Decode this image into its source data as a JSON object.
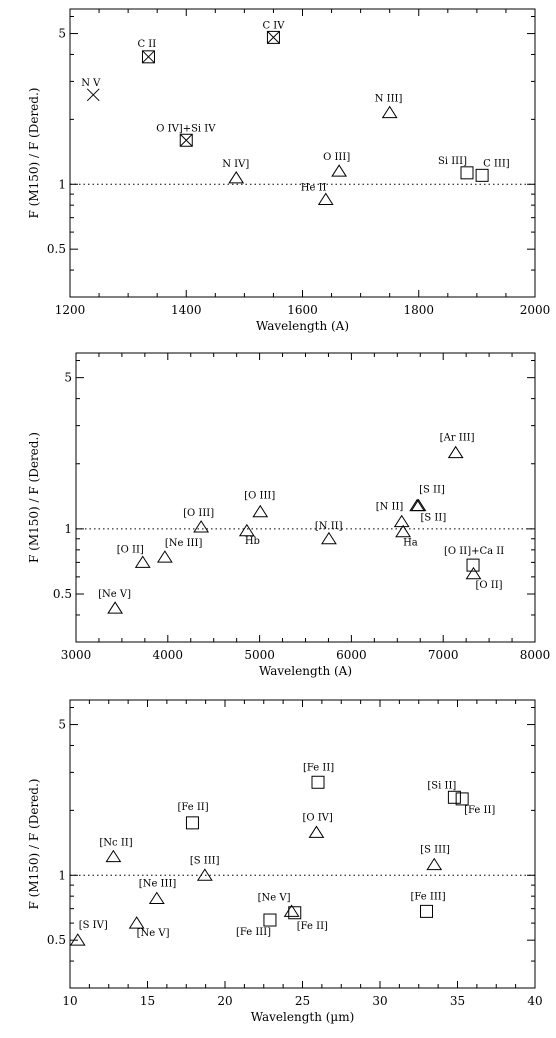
{
  "chart_data": [
    {
      "type": "scatter",
      "title": "",
      "xlabel": "Wavelength (A)",
      "ylabel": "F (M150) / F (Dered.)",
      "xlim": [
        1200,
        2000
      ],
      "ylim": [
        0.3,
        6.5
      ],
      "yscale": "log",
      "xticks": [
        1200,
        1400,
        1600,
        1800,
        2000
      ],
      "yticks": [
        0.5,
        1.0,
        5.0
      ],
      "reference_line": 1.0,
      "points": [
        {
          "label": "N V",
          "x": 1240,
          "y": 2.6,
          "marker": "x",
          "lx": -12,
          "ly": -9
        },
        {
          "label": "C II",
          "x": 1335,
          "y": 3.9,
          "marker": "boxx",
          "lx": -11,
          "ly": -10
        },
        {
          "label": "O IV]+Si IV",
          "x": 1400,
          "y": 1.6,
          "marker": "boxx",
          "lx": -30,
          "ly": -9
        },
        {
          "label": "C IV",
          "x": 1550,
          "y": 4.8,
          "marker": "boxx",
          "lx": -11,
          "ly": -9
        },
        {
          "label": "N IV]",
          "x": 1486,
          "y": 1.07,
          "marker": "tri",
          "lx": -14,
          "ly": -11
        },
        {
          "label": "He II",
          "x": 1640,
          "y": 0.85,
          "marker": "tri",
          "lx": -25,
          "ly": -9
        },
        {
          "label": "O III]",
          "x": 1663,
          "y": 1.15,
          "marker": "tri",
          "lx": -16,
          "ly": -11
        },
        {
          "label": "N III]",
          "x": 1750,
          "y": 2.15,
          "marker": "tri",
          "lx": -15,
          "ly": -11
        },
        {
          "label": "Si III]",
          "x": 1883,
          "y": 1.13,
          "marker": "box",
          "lx": -29,
          "ly": -9
        },
        {
          "label": "C III]",
          "x": 1909,
          "y": 1.1,
          "marker": "box",
          "lx": 1,
          "ly": -9
        }
      ]
    },
    {
      "type": "scatter",
      "title": "",
      "xlabel": "Wavelength (A)",
      "ylabel": "F (M150) / F (Dered.)",
      "xlim": [
        3000,
        8000
      ],
      "ylim": [
        0.3,
        6.5
      ],
      "yscale": "log",
      "xticks": [
        3000,
        4000,
        5000,
        6000,
        7000,
        8000
      ],
      "yticks": [
        0.5,
        1.0,
        5.0
      ],
      "reference_line": 1.0,
      "points": [
        {
          "label": "[Ne V]",
          "x": 3426,
          "y": 0.43,
          "marker": "tri",
          "lx": -17,
          "ly": -11
        },
        {
          "label": "[O II]",
          "x": 3727,
          "y": 0.7,
          "marker": "tri",
          "lx": -26,
          "ly": -10
        },
        {
          "label": "[Ne III]",
          "x": 3968,
          "y": 0.74,
          "marker": "tri",
          "lx": 0,
          "ly": -11
        },
        {
          "label": "[O III]",
          "x": 4363,
          "y": 1.02,
          "marker": "tri",
          "lx": -18,
          "ly": -11
        },
        {
          "label": "Hb",
          "x": 4861,
          "y": 0.98,
          "marker": "tri",
          "lx": -2,
          "ly": 13
        },
        {
          "label": "[O III]",
          "x": 5007,
          "y": 1.2,
          "marker": "tri",
          "lx": -16,
          "ly": -13
        },
        {
          "label": "[N II]",
          "x": 5755,
          "y": 0.9,
          "marker": "tri",
          "lx": -14,
          "ly": -10
        },
        {
          "label": "[N II]",
          "x": 6548,
          "y": 1.08,
          "marker": "tri",
          "lx": -26,
          "ly": -12
        },
        {
          "label": "Ha",
          "x": 6563,
          "y": 0.97,
          "marker": "tri",
          "lx": 0,
          "ly": 14
        },
        {
          "label": "[S II]",
          "x": 6716,
          "y": 1.28,
          "marker": "tri",
          "lx": 2,
          "ly": -13
        },
        {
          "label": "[S II]",
          "x": 6731,
          "y": 1.28,
          "marker": "tri",
          "lx": 2,
          "ly": 15
        },
        {
          "label": "[Ar III]",
          "x": 7136,
          "y": 2.25,
          "marker": "tri",
          "lx": -16,
          "ly": -12
        },
        {
          "label": "[O II]+Ca II",
          "x": 7325,
          "y": 0.68,
          "marker": "box",
          "lx": -29,
          "ly": -11
        },
        {
          "label": "[O II]",
          "x": 7330,
          "y": 0.62,
          "marker": "tri",
          "lx": 2,
          "ly": 14
        }
      ]
    },
    {
      "type": "scatter",
      "title": "",
      "xlabel": "Wavelength (µm)",
      "ylabel": "F (M150) / F (Dered.)",
      "xlim": [
        10,
        40
      ],
      "ylim": [
        0.3,
        6.5
      ],
      "yscale": "log",
      "xticks": [
        10,
        15,
        20,
        25,
        30,
        35,
        40
      ],
      "yticks": [
        0.5,
        1.0,
        5.0
      ],
      "reference_line": 1.0,
      "points": [
        {
          "label": "[S IV]",
          "x": 10.5,
          "y": 0.5,
          "marker": "tri",
          "lx": 1,
          "ly": -12
        },
        {
          "label": "[Nc II]",
          "x": 12.8,
          "y": 1.22,
          "marker": "tri",
          "lx": -14,
          "ly": -11
        },
        {
          "label": "[Ne V]",
          "x": 14.3,
          "y": 0.6,
          "marker": "tri",
          "lx": 0,
          "ly": 13
        },
        {
          "label": "[Ne III]",
          "x": 15.6,
          "y": 0.78,
          "marker": "tri",
          "lx": -18,
          "ly": -12
        },
        {
          "label": "[Fe II]",
          "x": 17.9,
          "y": 1.75,
          "marker": "box",
          "lx": -15,
          "ly": -13
        },
        {
          "label": "[S III]",
          "x": 18.7,
          "y": 1.0,
          "marker": "tri",
          "lx": -15,
          "ly": -12
        },
        {
          "label": "[Fe III]",
          "x": 22.9,
          "y": 0.62,
          "marker": "box",
          "lx": -34,
          "ly": 15
        },
        {
          "label": "[Ne V]",
          "x": 24.3,
          "y": 0.68,
          "marker": "tri",
          "lx": -34,
          "ly": -11
        },
        {
          "label": "[Fe II]",
          "x": 24.5,
          "y": 0.67,
          "marker": "box",
          "lx": 2,
          "ly": 16
        },
        {
          "label": "[Fe II]",
          "x": 26.0,
          "y": 2.7,
          "marker": "box",
          "lx": -15,
          "ly": -12
        },
        {
          "label": "[O IV]",
          "x": 25.9,
          "y": 1.58,
          "marker": "tri",
          "lx": -14,
          "ly": -12
        },
        {
          "label": "[S III]",
          "x": 33.5,
          "y": 1.12,
          "marker": "tri",
          "lx": -14,
          "ly": -12
        },
        {
          "label": "[Fe III]",
          "x": 33.0,
          "y": 0.68,
          "marker": "box",
          "lx": -16,
          "ly": -12
        },
        {
          "label": "[Si II]",
          "x": 34.8,
          "y": 2.3,
          "marker": "box",
          "lx": -27,
          "ly": -9
        },
        {
          "label": "[Fe II]",
          "x": 35.3,
          "y": 2.26,
          "marker": "box",
          "lx": 2,
          "ly": 14
        }
      ]
    }
  ]
}
